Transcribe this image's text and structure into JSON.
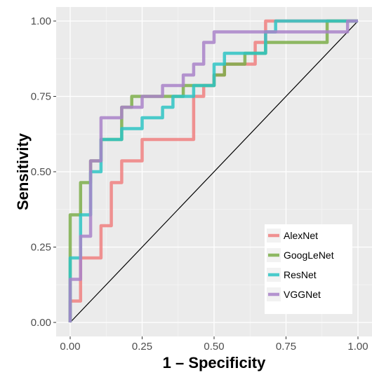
{
  "chart_data": {
    "type": "line",
    "title": "",
    "xlabel": "1 – Specificity",
    "ylabel": "Sensitivity",
    "xlim": [
      0,
      1
    ],
    "ylim": [
      0,
      1
    ],
    "x_ticks": [
      "0.00",
      "0.25",
      "0.50",
      "0.75",
      "1.00"
    ],
    "y_ticks": [
      "0.00",
      "0.25",
      "0.50",
      "0.75",
      "1.00"
    ],
    "grid": true,
    "legend_position": "bottom-right",
    "reference_line": {
      "x": [
        0,
        1
      ],
      "y": [
        0,
        1
      ],
      "color": "#000000"
    },
    "series": [
      {
        "name": "AlexNet",
        "color": "#F08080",
        "points": [
          [
            0,
            0
          ],
          [
            0,
            0.071
          ],
          [
            0.036,
            0.071
          ],
          [
            0.036,
            0.214
          ],
          [
            0.107,
            0.214
          ],
          [
            0.107,
            0.321
          ],
          [
            0.143,
            0.321
          ],
          [
            0.143,
            0.464
          ],
          [
            0.179,
            0.464
          ],
          [
            0.179,
            0.536
          ],
          [
            0.25,
            0.536
          ],
          [
            0.25,
            0.607
          ],
          [
            0.429,
            0.607
          ],
          [
            0.429,
            0.75
          ],
          [
            0.464,
            0.75
          ],
          [
            0.464,
            0.786
          ],
          [
            0.5,
            0.786
          ],
          [
            0.5,
            0.821
          ],
          [
            0.536,
            0.821
          ],
          [
            0.536,
            0.857
          ],
          [
            0.643,
            0.857
          ],
          [
            0.643,
            0.929
          ],
          [
            0.679,
            0.929
          ],
          [
            0.679,
            1
          ],
          [
            1,
            1
          ]
        ]
      },
      {
        "name": "GoogLeNet",
        "color": "#7CAE4A",
        "points": [
          [
            0,
            0
          ],
          [
            0,
            0.357
          ],
          [
            0.036,
            0.357
          ],
          [
            0.036,
            0.464
          ],
          [
            0.071,
            0.464
          ],
          [
            0.071,
            0.536
          ],
          [
            0.107,
            0.536
          ],
          [
            0.107,
            0.607
          ],
          [
            0.179,
            0.607
          ],
          [
            0.179,
            0.714
          ],
          [
            0.214,
            0.714
          ],
          [
            0.214,
            0.75
          ],
          [
            0.393,
            0.75
          ],
          [
            0.393,
            0.786
          ],
          [
            0.5,
            0.786
          ],
          [
            0.5,
            0.821
          ],
          [
            0.536,
            0.821
          ],
          [
            0.536,
            0.857
          ],
          [
            0.607,
            0.857
          ],
          [
            0.607,
            0.893
          ],
          [
            0.679,
            0.893
          ],
          [
            0.679,
            0.929
          ],
          [
            0.893,
            0.929
          ],
          [
            0.893,
            1
          ],
          [
            1,
            1
          ]
        ]
      },
      {
        "name": "ResNet",
        "color": "#2EC4C4",
        "points": [
          [
            0,
            0
          ],
          [
            0,
            0.214
          ],
          [
            0.036,
            0.214
          ],
          [
            0.036,
            0.357
          ],
          [
            0.071,
            0.357
          ],
          [
            0.071,
            0.5
          ],
          [
            0.107,
            0.5
          ],
          [
            0.107,
            0.607
          ],
          [
            0.179,
            0.607
          ],
          [
            0.179,
            0.643
          ],
          [
            0.25,
            0.643
          ],
          [
            0.25,
            0.679
          ],
          [
            0.321,
            0.679
          ],
          [
            0.321,
            0.714
          ],
          [
            0.357,
            0.714
          ],
          [
            0.357,
            0.75
          ],
          [
            0.429,
            0.75
          ],
          [
            0.429,
            0.786
          ],
          [
            0.5,
            0.786
          ],
          [
            0.5,
            0.857
          ],
          [
            0.536,
            0.857
          ],
          [
            0.536,
            0.893
          ],
          [
            0.679,
            0.893
          ],
          [
            0.679,
            0.964
          ],
          [
            0.714,
            0.964
          ],
          [
            0.714,
            1
          ],
          [
            1,
            1
          ]
        ]
      },
      {
        "name": "VGGNet",
        "color": "#A983C9",
        "points": [
          [
            0,
            0
          ],
          [
            0,
            0.143
          ],
          [
            0.036,
            0.143
          ],
          [
            0.036,
            0.286
          ],
          [
            0.071,
            0.286
          ],
          [
            0.071,
            0.536
          ],
          [
            0.107,
            0.536
          ],
          [
            0.107,
            0.679
          ],
          [
            0.179,
            0.679
          ],
          [
            0.179,
            0.714
          ],
          [
            0.25,
            0.714
          ],
          [
            0.25,
            0.75
          ],
          [
            0.321,
            0.75
          ],
          [
            0.321,
            0.786
          ],
          [
            0.393,
            0.786
          ],
          [
            0.393,
            0.821
          ],
          [
            0.429,
            0.821
          ],
          [
            0.429,
            0.857
          ],
          [
            0.464,
            0.857
          ],
          [
            0.464,
            0.929
          ],
          [
            0.5,
            0.929
          ],
          [
            0.5,
            0.964
          ],
          [
            0.964,
            0.964
          ],
          [
            0.964,
            1
          ],
          [
            1,
            1
          ]
        ]
      }
    ]
  }
}
